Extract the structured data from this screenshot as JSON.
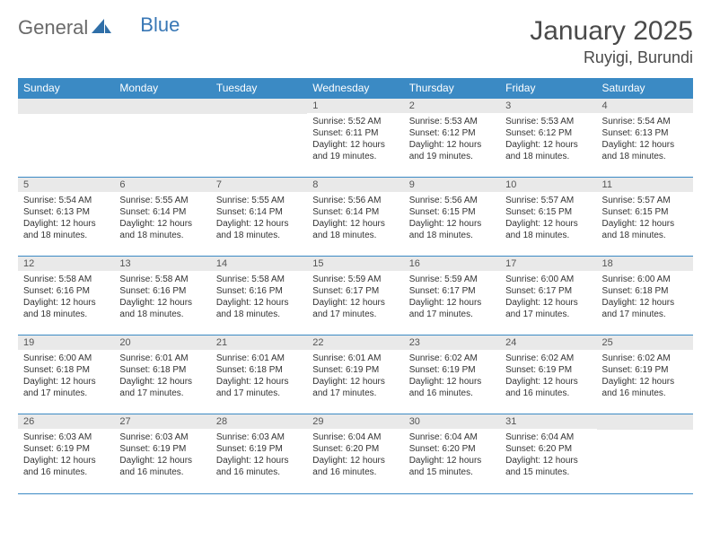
{
  "brand": {
    "general": "General",
    "blue": "Blue"
  },
  "title": {
    "month": "January 2025",
    "location": "Ruyigi, Burundi"
  },
  "colors": {
    "header_bg": "#3b8ac4",
    "header_text": "#ffffff",
    "daynum_bg": "#e9e9e9",
    "rule": "#3b8ac4",
    "logo_gray": "#6a6a6a",
    "logo_blue": "#3877b5",
    "text": "#333333"
  },
  "day_headers": [
    "Sunday",
    "Monday",
    "Tuesday",
    "Wednesday",
    "Thursday",
    "Friday",
    "Saturday"
  ],
  "weeks": [
    [
      {
        "n": "",
        "sunrise": "",
        "sunset": "",
        "daylight": ""
      },
      {
        "n": "",
        "sunrise": "",
        "sunset": "",
        "daylight": ""
      },
      {
        "n": "",
        "sunrise": "",
        "sunset": "",
        "daylight": ""
      },
      {
        "n": "1",
        "sunrise": "Sunrise: 5:52 AM",
        "sunset": "Sunset: 6:11 PM",
        "daylight": "Daylight: 12 hours and 19 minutes."
      },
      {
        "n": "2",
        "sunrise": "Sunrise: 5:53 AM",
        "sunset": "Sunset: 6:12 PM",
        "daylight": "Daylight: 12 hours and 19 minutes."
      },
      {
        "n": "3",
        "sunrise": "Sunrise: 5:53 AM",
        "sunset": "Sunset: 6:12 PM",
        "daylight": "Daylight: 12 hours and 18 minutes."
      },
      {
        "n": "4",
        "sunrise": "Sunrise: 5:54 AM",
        "sunset": "Sunset: 6:13 PM",
        "daylight": "Daylight: 12 hours and 18 minutes."
      }
    ],
    [
      {
        "n": "5",
        "sunrise": "Sunrise: 5:54 AM",
        "sunset": "Sunset: 6:13 PM",
        "daylight": "Daylight: 12 hours and 18 minutes."
      },
      {
        "n": "6",
        "sunrise": "Sunrise: 5:55 AM",
        "sunset": "Sunset: 6:14 PM",
        "daylight": "Daylight: 12 hours and 18 minutes."
      },
      {
        "n": "7",
        "sunrise": "Sunrise: 5:55 AM",
        "sunset": "Sunset: 6:14 PM",
        "daylight": "Daylight: 12 hours and 18 minutes."
      },
      {
        "n": "8",
        "sunrise": "Sunrise: 5:56 AM",
        "sunset": "Sunset: 6:14 PM",
        "daylight": "Daylight: 12 hours and 18 minutes."
      },
      {
        "n": "9",
        "sunrise": "Sunrise: 5:56 AM",
        "sunset": "Sunset: 6:15 PM",
        "daylight": "Daylight: 12 hours and 18 minutes."
      },
      {
        "n": "10",
        "sunrise": "Sunrise: 5:57 AM",
        "sunset": "Sunset: 6:15 PM",
        "daylight": "Daylight: 12 hours and 18 minutes."
      },
      {
        "n": "11",
        "sunrise": "Sunrise: 5:57 AM",
        "sunset": "Sunset: 6:15 PM",
        "daylight": "Daylight: 12 hours and 18 minutes."
      }
    ],
    [
      {
        "n": "12",
        "sunrise": "Sunrise: 5:58 AM",
        "sunset": "Sunset: 6:16 PM",
        "daylight": "Daylight: 12 hours and 18 minutes."
      },
      {
        "n": "13",
        "sunrise": "Sunrise: 5:58 AM",
        "sunset": "Sunset: 6:16 PM",
        "daylight": "Daylight: 12 hours and 18 minutes."
      },
      {
        "n": "14",
        "sunrise": "Sunrise: 5:58 AM",
        "sunset": "Sunset: 6:16 PM",
        "daylight": "Daylight: 12 hours and 18 minutes."
      },
      {
        "n": "15",
        "sunrise": "Sunrise: 5:59 AM",
        "sunset": "Sunset: 6:17 PM",
        "daylight": "Daylight: 12 hours and 17 minutes."
      },
      {
        "n": "16",
        "sunrise": "Sunrise: 5:59 AM",
        "sunset": "Sunset: 6:17 PM",
        "daylight": "Daylight: 12 hours and 17 minutes."
      },
      {
        "n": "17",
        "sunrise": "Sunrise: 6:00 AM",
        "sunset": "Sunset: 6:17 PM",
        "daylight": "Daylight: 12 hours and 17 minutes."
      },
      {
        "n": "18",
        "sunrise": "Sunrise: 6:00 AM",
        "sunset": "Sunset: 6:18 PM",
        "daylight": "Daylight: 12 hours and 17 minutes."
      }
    ],
    [
      {
        "n": "19",
        "sunrise": "Sunrise: 6:00 AM",
        "sunset": "Sunset: 6:18 PM",
        "daylight": "Daylight: 12 hours and 17 minutes."
      },
      {
        "n": "20",
        "sunrise": "Sunrise: 6:01 AM",
        "sunset": "Sunset: 6:18 PM",
        "daylight": "Daylight: 12 hours and 17 minutes."
      },
      {
        "n": "21",
        "sunrise": "Sunrise: 6:01 AM",
        "sunset": "Sunset: 6:18 PM",
        "daylight": "Daylight: 12 hours and 17 minutes."
      },
      {
        "n": "22",
        "sunrise": "Sunrise: 6:01 AM",
        "sunset": "Sunset: 6:19 PM",
        "daylight": "Daylight: 12 hours and 17 minutes."
      },
      {
        "n": "23",
        "sunrise": "Sunrise: 6:02 AM",
        "sunset": "Sunset: 6:19 PM",
        "daylight": "Daylight: 12 hours and 16 minutes."
      },
      {
        "n": "24",
        "sunrise": "Sunrise: 6:02 AM",
        "sunset": "Sunset: 6:19 PM",
        "daylight": "Daylight: 12 hours and 16 minutes."
      },
      {
        "n": "25",
        "sunrise": "Sunrise: 6:02 AM",
        "sunset": "Sunset: 6:19 PM",
        "daylight": "Daylight: 12 hours and 16 minutes."
      }
    ],
    [
      {
        "n": "26",
        "sunrise": "Sunrise: 6:03 AM",
        "sunset": "Sunset: 6:19 PM",
        "daylight": "Daylight: 12 hours and 16 minutes."
      },
      {
        "n": "27",
        "sunrise": "Sunrise: 6:03 AM",
        "sunset": "Sunset: 6:19 PM",
        "daylight": "Daylight: 12 hours and 16 minutes."
      },
      {
        "n": "28",
        "sunrise": "Sunrise: 6:03 AM",
        "sunset": "Sunset: 6:19 PM",
        "daylight": "Daylight: 12 hours and 16 minutes."
      },
      {
        "n": "29",
        "sunrise": "Sunrise: 6:04 AM",
        "sunset": "Sunset: 6:20 PM",
        "daylight": "Daylight: 12 hours and 16 minutes."
      },
      {
        "n": "30",
        "sunrise": "Sunrise: 6:04 AM",
        "sunset": "Sunset: 6:20 PM",
        "daylight": "Daylight: 12 hours and 15 minutes."
      },
      {
        "n": "31",
        "sunrise": "Sunrise: 6:04 AM",
        "sunset": "Sunset: 6:20 PM",
        "daylight": "Daylight: 12 hours and 15 minutes."
      },
      {
        "n": "",
        "sunrise": "",
        "sunset": "",
        "daylight": ""
      }
    ]
  ]
}
